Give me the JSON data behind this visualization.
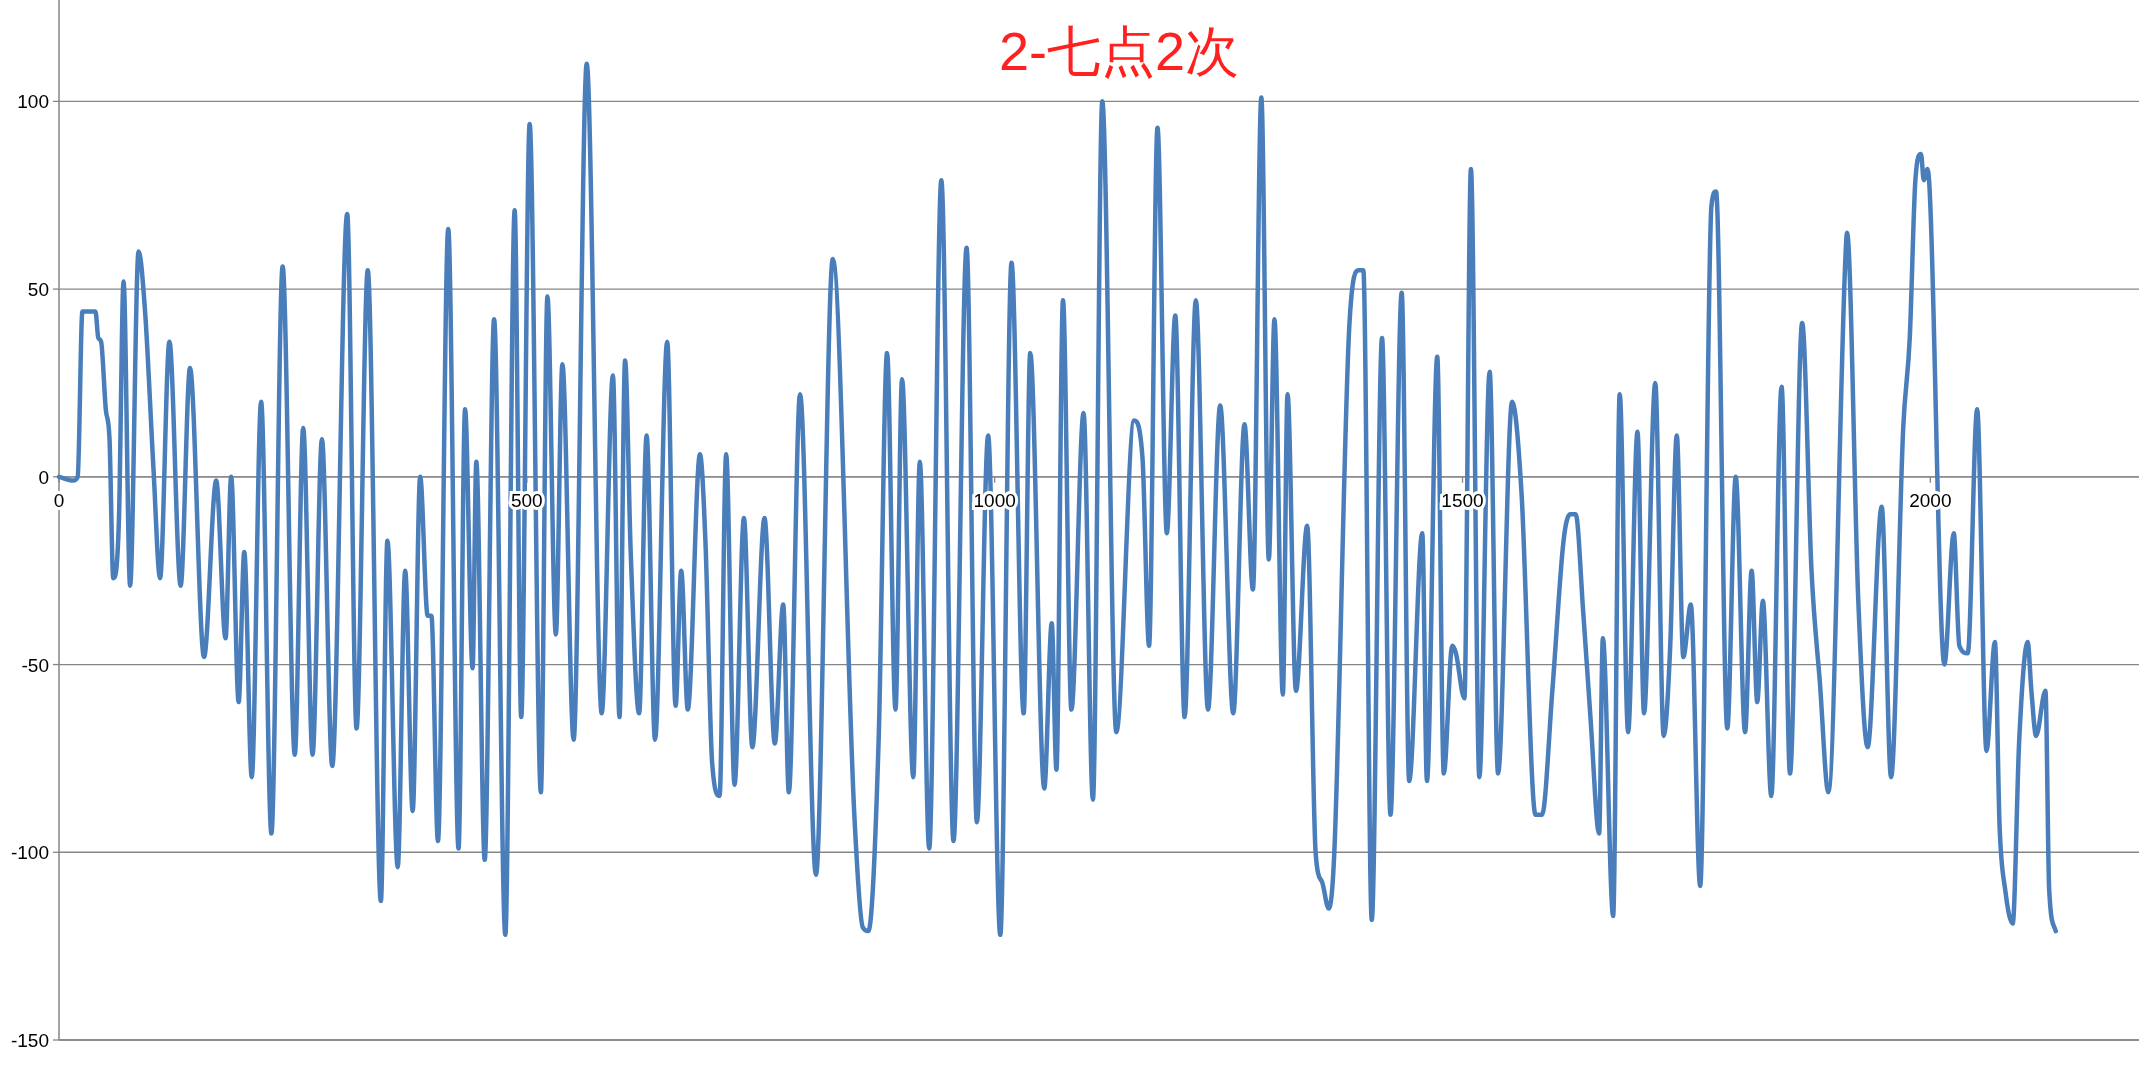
{
  "chart_data": {
    "type": "line",
    "title": "2-七点2次",
    "color": "#4a7ebb",
    "grid": "y",
    "xlim": [
      0,
      2223
    ],
    "ylim": [
      -150,
      127
    ],
    "xticks": [
      0,
      500,
      1000,
      1500,
      2000
    ],
    "yticks": [
      -150,
      -100,
      -50,
      0,
      50,
      100
    ],
    "x": [
      0,
      15,
      20,
      25,
      39,
      42,
      45,
      50,
      54,
      58,
      64,
      69,
      76,
      85,
      92,
      101,
      108,
      118,
      130,
      140,
      155,
      168,
      178,
      184,
      192,
      198,
      206,
      216,
      227,
      239,
      252,
      261,
      271,
      281,
      292,
      308,
      318,
      330,
      344,
      351,
      362,
      370,
      378,
      386,
      394,
      398,
      405,
      416,
      427,
      434,
      442,
      446,
      455,
      465,
      477,
      487,
      494,
      503,
      515,
      522,
      531,
      538,
      550,
      564,
      580,
      592,
      599,
      605,
      611,
      620,
      628,
      637,
      650,
      659,
      665,
      672,
      685,
      691,
      698,
      706,
      713,
      722,
      732,
      741,
      754,
      765,
      774,
      780,
      792,
      809,
      827,
      850,
      859,
      865,
      876,
      885,
      894,
      901,
      913,
      920,
      930,
      943,
      956,
      970,
      981,
      993,
      1006,
      1018,
      1031,
      1038,
      1053,
      1061,
      1066,
      1073,
      1082,
      1095,
      1105,
      1115,
      1130,
      1149,
      1158,
      1165,
      1174,
      1184,
      1193,
      1203,
      1215,
      1228,
      1241,
      1255,
      1267,
      1276,
      1285,
      1293,
      1299,
      1308,
      1313,
      1322,
      1334,
      1343,
      1350,
      1357,
      1363,
      1379,
      1389,
      1394,
      1403,
      1414,
      1423,
      1435,
      1443,
      1457,
      1462,
      1473,
      1480,
      1489,
      1493,
      1502,
      1509,
      1518,
      1529,
      1538,
      1553,
      1563,
      1578,
      1585,
      1596,
      1608,
      1615,
      1621,
      1629,
      1637,
      1646,
      1650,
      1661,
      1668,
      1677,
      1687,
      1694,
      1706,
      1715,
      1722,
      1729,
      1736,
      1744,
      1754,
      1766,
      1771,
      1783,
      1792,
      1802,
      1809,
      1815,
      1821,
      1830,
      1841,
      1850,
      1863,
      1873,
      1882,
      1891,
      1909,
      1911,
      1923,
      1933,
      1948,
      1958,
      1971,
      1978,
      1984,
      1990,
      1993,
      1997,
      2015,
      2025,
      2031,
      2040,
      2050,
      2060,
      2069,
      2074,
      2080,
      2088,
      2095,
      2104,
      2108,
      2113,
      2123,
      2127,
      2134
    ],
    "values": [
      0,
      -1,
      0,
      44,
      44,
      37,
      36,
      18,
      10,
      -27,
      -12,
      52,
      -29,
      60,
      44,
      2,
      -27,
      36,
      -29,
      29,
      -48,
      -1,
      -43,
      0,
      -60,
      -20,
      -80,
      20,
      -95,
      56,
      -74,
      13,
      -74,
      10,
      -77,
      70,
      -67,
      55,
      -113,
      -17,
      -104,
      -25,
      -89,
      0,
      -37,
      -37,
      -97,
      66,
      -99,
      18,
      -51,
      4,
      -102,
      42,
      -122,
      71,
      -64,
      94,
      -84,
      48,
      -42,
      30,
      -70,
      110,
      -63,
      27,
      -64,
      31,
      -20,
      -63,
      11,
      -70,
      36,
      -61,
      -25,
      -62,
      6,
      -18,
      -76,
      -85,
      6,
      -82,
      -11,
      -72,
      -11,
      -71,
      -34,
      -84,
      22,
      -106,
      58,
      -90,
      -120,
      -121,
      -70,
      33,
      -62,
      26,
      -80,
      4,
      -99,
      79,
      -97,
      61,
      -92,
      11,
      -122,
      57,
      -63,
      33,
      -83,
      -39,
      -78,
      47,
      -62,
      17,
      -86,
      100,
      -68,
      15,
      5,
      -45,
      93,
      -15,
      43,
      -64,
      47,
      -62,
      19,
      -63,
      14,
      -30,
      101,
      -22,
      42,
      -58,
      22,
      -57,
      -13,
      -100,
      -108,
      -115,
      -100,
      40,
      55,
      55,
      -118,
      37,
      -90,
      49,
      -81,
      -15,
      -81,
      32,
      -79,
      -45,
      -47,
      -59,
      82,
      -80,
      28,
      -79,
      20,
      -4,
      -90,
      -90,
      -57,
      -17,
      -10,
      -10,
      -36,
      -65,
      -95,
      -43,
      -117,
      22,
      -68,
      12,
      -63,
      25,
      -69,
      -45,
      11,
      -48,
      -34,
      -109,
      72,
      76,
      -67,
      0,
      -68,
      -25,
      -60,
      -33,
      -85,
      24,
      -79,
      41,
      -25,
      -55,
      -84,
      57,
      65,
      -33,
      -72,
      -8,
      -80,
      13,
      37,
      79,
      86,
      79,
      82,
      -50,
      -15,
      -45,
      -47,
      18,
      -73,
      -44,
      -93,
      -110,
      -119,
      -70,
      -44,
      -57,
      -69,
      -57,
      -110,
      -121
    ]
  }
}
